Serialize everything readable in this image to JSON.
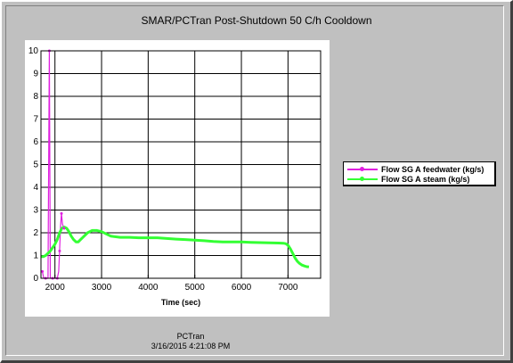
{
  "chart_data": {
    "type": "line",
    "title": "SMAR/PCTran Post-Shutdown 50 C/h Cooldown",
    "xlabel": "Time (sec)",
    "ylabel": "",
    "xlim": [
      1700,
      7700
    ],
    "ylim": [
      0,
      10
    ],
    "xticks": [
      2000,
      3000,
      4000,
      5000,
      6000,
      7000
    ],
    "yticks": [
      0,
      1,
      2,
      3,
      4,
      5,
      6,
      7,
      8,
      9,
      10
    ],
    "grid": true,
    "legend_position": "right",
    "series": [
      {
        "name": "Flow SG A feedwater (kg/s)",
        "color": "#e020e0",
        "x": [
          1730,
          1760,
          1800,
          1850,
          1880,
          1900,
          1950,
          2000,
          2050,
          2080,
          2100,
          2120,
          2140,
          2160,
          2190,
          2220
        ],
        "y": [
          0.3,
          0,
          0,
          0,
          10,
          0,
          0,
          0,
          0,
          0.3,
          1.2,
          2.3,
          2.85,
          2.4,
          2.2,
          2.15
        ]
      },
      {
        "name": "Flow SG A steam (kg/s)",
        "color": "#33ff33",
        "x": [
          1700,
          1750,
          1800,
          1850,
          1900,
          1950,
          2000,
          2050,
          2100,
          2150,
          2200,
          2250,
          2300,
          2350,
          2400,
          2450,
          2500,
          2550,
          2600,
          2700,
          2800,
          2900,
          3000,
          3100,
          3200,
          3400,
          3600,
          3800,
          4000,
          4200,
          4400,
          4600,
          4800,
          5000,
          5200,
          5400,
          5600,
          5800,
          6000,
          6200,
          6400,
          6600,
          6800,
          6900,
          6950,
          7000,
          7050,
          7100,
          7150,
          7200,
          7250,
          7300,
          7350,
          7400,
          7450
        ],
        "y": [
          0.95,
          0.95,
          1.0,
          1.1,
          1.2,
          1.35,
          1.5,
          1.7,
          2.0,
          2.2,
          2.25,
          2.2,
          2.05,
          1.85,
          1.7,
          1.6,
          1.6,
          1.7,
          1.8,
          2.0,
          2.1,
          2.1,
          2.05,
          1.95,
          1.85,
          1.8,
          1.8,
          1.78,
          1.78,
          1.78,
          1.75,
          1.72,
          1.7,
          1.68,
          1.65,
          1.62,
          1.6,
          1.6,
          1.6,
          1.58,
          1.57,
          1.56,
          1.55,
          1.54,
          1.52,
          1.45,
          1.3,
          1.1,
          0.9,
          0.75,
          0.65,
          0.58,
          0.54,
          0.51,
          0.5
        ]
      }
    ]
  },
  "footer": {
    "app": "PCTran",
    "timestamp": "3/16/2015 4:21:08 PM"
  }
}
